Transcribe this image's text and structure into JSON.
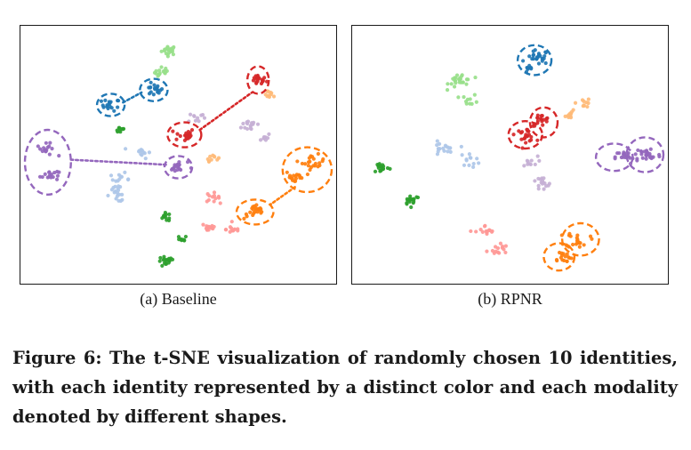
{
  "figure": {
    "caption": "Figure 6: The t-SNE visualization of randomly chosen 10 identities, with each identity represented by a distinct color and each modality denoted by different shapes."
  },
  "colors": {
    "blue": "#1f77b4",
    "light_blue": "#aec7e8",
    "green": "#2ca02c",
    "light_green": "#98df8a",
    "red": "#d62728",
    "pink": "#ff9896",
    "orange": "#ff7f0e",
    "light_orange": "#ffbb78",
    "purple": "#9467bd",
    "lavender": "#c5b0d5"
  },
  "chart_data": [
    {
      "type": "scatter",
      "caption": "(a) Baseline",
      "axes_visible": false,
      "xlim": [
        0,
        100
      ],
      "ylim": [
        0,
        100
      ],
      "clusters": [
        {
          "color": "light_green",
          "x": 47,
          "y": 92,
          "n": 22,
          "spread": 1.6
        },
        {
          "color": "light_green",
          "x": 45,
          "y": 83,
          "n": 16,
          "spread": 1.8
        },
        {
          "color": "blue",
          "x": 28,
          "y": 70,
          "n": 18,
          "spread": 2.0
        },
        {
          "color": "blue",
          "x": 42,
          "y": 76,
          "n": 18,
          "spread": 2.0
        },
        {
          "color": "red",
          "x": 76,
          "y": 80,
          "n": 20,
          "spread": 1.8
        },
        {
          "color": "light_orange",
          "x": 80,
          "y": 74,
          "n": 10,
          "spread": 1.2
        },
        {
          "color": "lavender",
          "x": 56,
          "y": 65,
          "n": 10,
          "spread": 1.8
        },
        {
          "color": "red",
          "x": 52,
          "y": 58,
          "n": 22,
          "spread": 2.2
        },
        {
          "color": "green",
          "x": 31,
          "y": 60,
          "n": 9,
          "spread": 1.2
        },
        {
          "color": "lavender",
          "x": 74,
          "y": 62,
          "n": 16,
          "spread": 2.2
        },
        {
          "color": "lavender",
          "x": 78,
          "y": 57,
          "n": 8,
          "spread": 1.4
        },
        {
          "color": "light_blue",
          "x": 38,
          "y": 51,
          "n": 12,
          "spread": 2.0
        },
        {
          "color": "light_orange",
          "x": 61,
          "y": 49,
          "n": 10,
          "spread": 1.3
        },
        {
          "color": "purple",
          "x": 7,
          "y": 52,
          "n": 16,
          "spread": 2.0
        },
        {
          "color": "purple",
          "x": 8,
          "y": 42,
          "n": 16,
          "spread": 2.0
        },
        {
          "color": "purple",
          "x": 50,
          "y": 45,
          "n": 18,
          "spread": 2.0
        },
        {
          "color": "orange",
          "x": 94,
          "y": 47,
          "n": 22,
          "spread": 2.4
        },
        {
          "color": "orange",
          "x": 88,
          "y": 41,
          "n": 16,
          "spread": 2.2
        },
        {
          "color": "light_blue",
          "x": 31,
          "y": 40,
          "n": 14,
          "spread": 2.2
        },
        {
          "color": "light_blue",
          "x": 30,
          "y": 34,
          "n": 16,
          "spread": 2.4
        },
        {
          "color": "pink",
          "x": 61,
          "y": 33,
          "n": 12,
          "spread": 1.6
        },
        {
          "color": "orange",
          "x": 75,
          "y": 27,
          "n": 22,
          "spread": 2.4
        },
        {
          "color": "pink",
          "x": 60,
          "y": 21,
          "n": 14,
          "spread": 1.8
        },
        {
          "color": "pink",
          "x": 68,
          "y": 20,
          "n": 12,
          "spread": 1.6
        },
        {
          "color": "green",
          "x": 46,
          "y": 25,
          "n": 12,
          "spread": 1.4
        },
        {
          "color": "green",
          "x": 51,
          "y": 16,
          "n": 8,
          "spread": 1.2
        },
        {
          "color": "green",
          "x": 46,
          "y": 7,
          "n": 18,
          "spread": 1.8
        }
      ],
      "annotations": [
        {
          "shape": "ellipse",
          "color": "blue",
          "cx": 28,
          "cy": 70,
          "rx": 4.5,
          "ry": 4.5,
          "dashed": true
        },
        {
          "shape": "ellipse",
          "color": "blue",
          "cx": 42,
          "cy": 76,
          "rx": 4.5,
          "ry": 4.5,
          "dashed": true
        },
        {
          "shape": "ellipse",
          "color": "red",
          "cx": 76,
          "cy": 80,
          "rx": 3.5,
          "ry": 5.5,
          "dashed": true
        },
        {
          "shape": "ellipse",
          "color": "red",
          "cx": 52,
          "cy": 58,
          "rx": 5.5,
          "ry": 5.0,
          "dashed": true
        },
        {
          "shape": "ellipse",
          "color": "purple",
          "cx": 7.5,
          "cy": 47,
          "rx": 7.5,
          "ry": 13,
          "dashed": true
        },
        {
          "shape": "ellipse",
          "color": "purple",
          "cx": 50,
          "cy": 45,
          "rx": 4.5,
          "ry": 4.5,
          "dashed": true
        },
        {
          "shape": "ellipse",
          "color": "orange",
          "cx": 92,
          "cy": 44,
          "rx": 8,
          "ry": 9,
          "dashed": true
        },
        {
          "shape": "ellipse",
          "color": "orange",
          "cx": 75,
          "cy": 27,
          "rx": 6,
          "ry": 5,
          "dashed": true
        }
      ],
      "connectors": [
        {
          "color": "blue",
          "from": [
            32,
            71
          ],
          "to": [
            38,
            75
          ]
        },
        {
          "color": "red",
          "from": [
            57,
            60
          ],
          "to": [
            74,
            75
          ]
        },
        {
          "color": "purple",
          "from": [
            15,
            48
          ],
          "to": [
            46,
            46
          ]
        },
        {
          "color": "orange",
          "from": [
            88,
            37
          ],
          "to": [
            80,
            30
          ]
        }
      ]
    },
    {
      "type": "scatter",
      "caption": "(b) RPNR",
      "axes_visible": false,
      "xlim": [
        0,
        100
      ],
      "ylim": [
        0,
        100
      ],
      "clusters": [
        {
          "color": "blue",
          "x": 59,
          "y": 89,
          "n": 24,
          "spread": 2.4
        },
        {
          "color": "blue",
          "x": 56,
          "y": 84,
          "n": 8,
          "spread": 1.2
        },
        {
          "color": "light_green",
          "x": 34,
          "y": 80,
          "n": 26,
          "spread": 2.6
        },
        {
          "color": "light_green",
          "x": 37,
          "y": 72,
          "n": 10,
          "spread": 1.8
        },
        {
          "color": "light_orange",
          "x": 74,
          "y": 71,
          "n": 10,
          "spread": 1.6
        },
        {
          "color": "light_orange",
          "x": 70,
          "y": 66,
          "n": 10,
          "spread": 1.4
        },
        {
          "color": "red",
          "x": 60,
          "y": 64,
          "n": 18,
          "spread": 2.0
        },
        {
          "color": "red",
          "x": 55,
          "y": 58,
          "n": 22,
          "spread": 2.2
        },
        {
          "color": "light_blue",
          "x": 28,
          "y": 52,
          "n": 18,
          "spread": 2.6
        },
        {
          "color": "light_blue",
          "x": 37,
          "y": 48,
          "n": 12,
          "spread": 2.2
        },
        {
          "color": "lavender",
          "x": 56,
          "y": 47,
          "n": 10,
          "spread": 2.0
        },
        {
          "color": "lavender",
          "x": 60,
          "y": 38,
          "n": 16,
          "spread": 2.6
        },
        {
          "color": "purple",
          "x": 88,
          "y": 49,
          "n": 20,
          "spread": 2.4
        },
        {
          "color": "purple",
          "x": 95,
          "y": 50,
          "n": 26,
          "spread": 2.8
        },
        {
          "color": "green",
          "x": 8,
          "y": 45,
          "n": 18,
          "spread": 1.8
        },
        {
          "color": "green",
          "x": 18,
          "y": 32,
          "n": 18,
          "spread": 1.8
        },
        {
          "color": "pink",
          "x": 42,
          "y": 19,
          "n": 14,
          "spread": 2.2
        },
        {
          "color": "pink",
          "x": 46,
          "y": 12,
          "n": 14,
          "spread": 2.2
        },
        {
          "color": "orange",
          "x": 72,
          "y": 16,
          "n": 22,
          "spread": 2.6
        },
        {
          "color": "orange",
          "x": 67,
          "y": 9,
          "n": 16,
          "spread": 2.2
        }
      ],
      "annotations": [
        {
          "shape": "ellipse",
          "color": "blue",
          "cx": 58,
          "cy": 88,
          "rx": 5.5,
          "ry": 6,
          "dashed": true
        },
        {
          "shape": "ellipse",
          "color": "red",
          "cx": 61,
          "cy": 63,
          "rx": 4.5,
          "ry": 6,
          "dashed": true
        },
        {
          "shape": "ellipse",
          "color": "red",
          "cx": 55,
          "cy": 58,
          "rx": 5.5,
          "ry": 5.5,
          "dashed": true
        },
        {
          "shape": "ellipse",
          "color": "purple",
          "cx": 84,
          "cy": 49,
          "rx": 6,
          "ry": 5.5,
          "dashed": true
        },
        {
          "shape": "ellipse",
          "color": "purple",
          "cx": 94,
          "cy": 50,
          "rx": 6,
          "ry": 7,
          "dashed": true
        },
        {
          "shape": "ellipse",
          "color": "orange",
          "cx": 73,
          "cy": 16,
          "rx": 6,
          "ry": 6.5,
          "dashed": true
        },
        {
          "shape": "ellipse",
          "color": "orange",
          "cx": 66,
          "cy": 9,
          "rx": 5,
          "ry": 5.5,
          "dashed": true
        }
      ],
      "connectors": []
    }
  ]
}
